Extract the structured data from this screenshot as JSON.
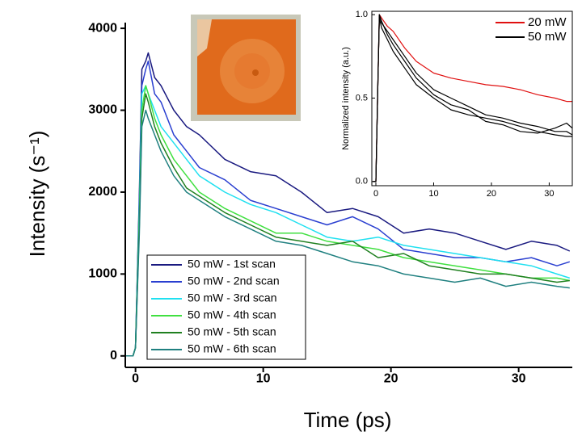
{
  "chart_data": [
    {
      "type": "line",
      "x_label": "Time (ps)",
      "y_label": "Intensity (s⁻¹)",
      "x": [
        -0.8,
        -0.2,
        0,
        0.3,
        0.5,
        0.8,
        1,
        1.5,
        2,
        3,
        4,
        5,
        7,
        9,
        11,
        13,
        15,
        17,
        19,
        21,
        23,
        25,
        27,
        29,
        31,
        33,
        34
      ],
      "series": [
        {
          "name": "50 mW - 1st scan",
          "color": "#1a1a80",
          "values": [
            0,
            0,
            100,
            2000,
            3500,
            3600,
            3700,
            3400,
            3300,
            3000,
            2800,
            2700,
            2400,
            2250,
            2200,
            2000,
            1750,
            1800,
            1700,
            1500,
            1550,
            1500,
            1400,
            1300,
            1400,
            1350,
            1280
          ]
        },
        {
          "name": "50 mW - 2nd scan",
          "color": "#2a3fd0",
          "values": [
            0,
            0,
            100,
            1900,
            3300,
            3500,
            3600,
            3200,
            3100,
            2700,
            2500,
            2300,
            2150,
            1900,
            1800,
            1700,
            1600,
            1700,
            1550,
            1300,
            1250,
            1200,
            1200,
            1150,
            1200,
            1100,
            1150
          ]
        },
        {
          "name": "50 mW - 3rd scan",
          "color": "#20e0f0",
          "values": [
            0,
            0,
            100,
            1800,
            3200,
            3300,
            3200,
            3000,
            2800,
            2600,
            2400,
            2200,
            2000,
            1850,
            1750,
            1600,
            1450,
            1400,
            1450,
            1350,
            1300,
            1250,
            1200,
            1150,
            1100,
            1000,
            950
          ]
        },
        {
          "name": "50 mW - 4th scan",
          "color": "#40e040",
          "values": [
            0,
            0,
            100,
            1700,
            3000,
            3300,
            3200,
            2900,
            2700,
            2400,
            2200,
            2000,
            1800,
            1650,
            1500,
            1500,
            1400,
            1350,
            1300,
            1200,
            1150,
            1100,
            1050,
            1000,
            950,
            950,
            920
          ]
        },
        {
          "name": "50 mW - 5th scan",
          "color": "#208020",
          "values": [
            0,
            0,
            100,
            1600,
            2900,
            3200,
            3100,
            2800,
            2600,
            2300,
            2050,
            1950,
            1750,
            1600,
            1450,
            1400,
            1350,
            1400,
            1200,
            1250,
            1100,
            1050,
            1000,
            1000,
            950,
            900,
            920
          ]
        },
        {
          "name": "50 mW - 6th scan",
          "color": "#208080",
          "values": [
            0,
            0,
            100,
            1500,
            2800,
            3000,
            2900,
            2700,
            2500,
            2200,
            2000,
            1900,
            1700,
            1550,
            1400,
            1350,
            1250,
            1150,
            1100,
            1000,
            950,
            900,
            950,
            850,
            900,
            850,
            830
          ]
        }
      ],
      "xlim": [
        -0.8,
        34.2
      ],
      "ylim": [
        -140,
        4070
      ],
      "xticks": [
        0,
        10,
        20,
        30
      ],
      "yticks": [
        0,
        1000,
        2000,
        3000,
        4000
      ],
      "legend": "lower left"
    },
    {
      "type": "line",
      "y_label": "Normalized intensity (a.u.)",
      "x": [
        -0.5,
        0,
        0.3,
        0.6,
        1,
        2,
        3,
        5,
        7,
        10,
        13,
        16,
        19,
        22,
        25,
        28,
        31,
        33,
        34
      ],
      "series": [
        {
          "name": "20 mW",
          "color": "#e01010",
          "values": [
            0,
            0,
            0.5,
            1.0,
            0.98,
            0.93,
            0.9,
            0.8,
            0.72,
            0.65,
            0.62,
            0.6,
            0.58,
            0.57,
            0.55,
            0.52,
            0.5,
            0.48,
            0.48
          ]
        },
        {
          "name": "50 mW",
          "color": "#000000",
          "values": [
            0,
            0,
            0.5,
            1.0,
            0.95,
            0.9,
            0.85,
            0.75,
            0.65,
            0.55,
            0.5,
            0.45,
            0.4,
            0.38,
            0.35,
            0.33,
            0.3,
            0.3,
            0.28
          ]
        },
        {
          "color": "#000000",
          "values": [
            0,
            0,
            0.5,
            0.98,
            0.92,
            0.85,
            0.78,
            0.68,
            0.58,
            0.5,
            0.43,
            0.4,
            0.38,
            0.36,
            0.33,
            0.3,
            0.28,
            0.27,
            0.27
          ]
        },
        {
          "color": "#000000",
          "values": [
            0,
            0,
            0.5,
            1.0,
            0.96,
            0.88,
            0.82,
            0.72,
            0.62,
            0.52,
            0.46,
            0.43,
            0.36,
            0.34,
            0.3,
            0.29,
            0.32,
            0.35,
            0.32
          ]
        }
      ],
      "xlim": [
        -0.7,
        34
      ],
      "ylim": [
        -0.025,
        1.02
      ],
      "xticks": [
        0,
        10,
        20,
        30
      ],
      "yticks": [
        {
          "value": 0,
          "label": "0.0"
        },
        {
          "value": 0.5,
          "label": "0.5"
        },
        {
          "value": 1,
          "label": "1.0"
        }
      ],
      "legend": "upper right"
    }
  ]
}
